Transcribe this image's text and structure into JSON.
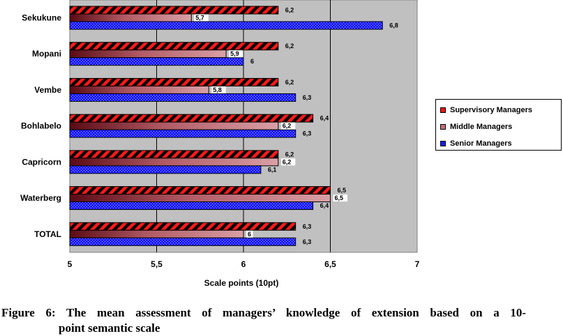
{
  "chart_data": {
    "type": "bar",
    "orientation": "horizontal",
    "categories": [
      "Sekukune",
      "Mopani",
      "Vembe",
      "Bohlabelo",
      "Capricorn",
      "Waterberg",
      "TOTAL"
    ],
    "series": [
      {
        "name": "Supervisory Managers",
        "values": [
          6.2,
          6.2,
          6.2,
          6.4,
          6.2,
          6.5,
          6.3
        ],
        "labels": [
          "6,2",
          "6,2",
          "6,2",
          "6,4",
          "6,2",
          "6,5",
          "6,3"
        ],
        "color": "#e8141a"
      },
      {
        "name": "Middle Managers",
        "values": [
          5.7,
          5.9,
          5.8,
          6.2,
          6.2,
          6.5,
          6.0
        ],
        "labels": [
          "5,7",
          "5,9",
          "5,8",
          "6,2",
          "6,2",
          "6,5",
          "6"
        ],
        "color": "#c0707a"
      },
      {
        "name": "Senior Managers",
        "values": [
          6.8,
          6.0,
          6.3,
          6.3,
          6.1,
          6.4,
          6.3
        ],
        "labels": [
          "6,8",
          "6",
          "6,3",
          "6,3",
          "6,1",
          "6,4",
          "6,3"
        ],
        "color": "#1a1aff"
      }
    ],
    "xlim": [
      5,
      7
    ],
    "xticks": [
      5,
      5.5,
      6,
      6.5,
      7
    ],
    "xtick_labels": [
      "5",
      "5,5",
      "6",
      "6,5",
      "7"
    ],
    "xlabel": "Scale points (10pt)",
    "ylabel": "",
    "grid": "vertical",
    "legend_position": "right",
    "plot_background": "#c0c0c0"
  },
  "caption": {
    "line1": "Figure 6: The mean assessment of managers’ knowledge of extension based on a 10-",
    "line2": "point semantic scale"
  }
}
